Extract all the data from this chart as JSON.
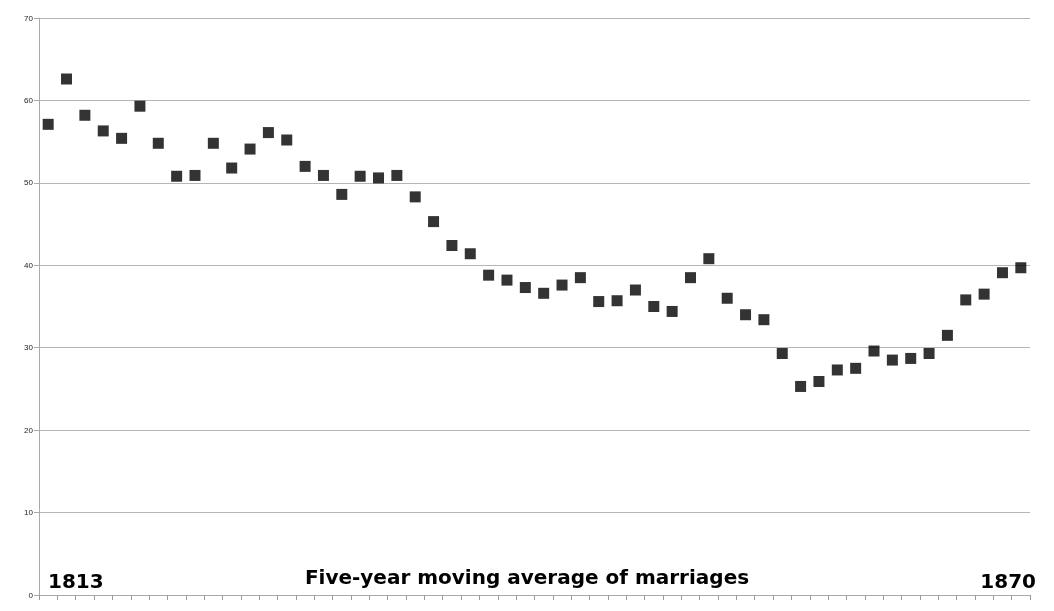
{
  "chart_data": {
    "type": "scatter",
    "xlabel": "Five-year moving average of marriages",
    "annotations": [
      "1813",
      "1870"
    ],
    "categories": [
      null,
      null,
      null,
      null,
      null,
      null,
      null,
      null,
      null,
      null,
      null,
      null,
      null,
      null,
      null,
      null,
      null,
      null,
      null,
      null,
      null,
      null,
      null,
      null,
      null,
      null,
      null,
      null,
      null,
      null,
      null,
      null,
      null,
      null,
      null,
      null,
      null,
      null,
      null,
      null,
      null,
      null,
      null,
      null,
      null,
      null,
      null,
      null,
      null,
      null,
      null,
      null,
      null,
      null
    ],
    "values": [
      57.1,
      62.6,
      58.2,
      56.3,
      55.4,
      59.3,
      54.8,
      50.8,
      50.9,
      54.8,
      51.8,
      54.1,
      56.1,
      55.2,
      52.0,
      50.9,
      48.6,
      50.8,
      50.6,
      50.9,
      48.3,
      45.3,
      42.4,
      41.4,
      38.8,
      38.2,
      37.3,
      36.6,
      37.6,
      38.5,
      35.6,
      35.7,
      37.0,
      35.0,
      34.4,
      38.5,
      40.8,
      36.0,
      34.0,
      33.4,
      29.3,
      25.3,
      25.9,
      27.3,
      27.5,
      29.6,
      28.5,
      28.7,
      29.3,
      31.5,
      35.8,
      36.5,
      39.1,
      39.7
    ],
    "color": "#000000",
    "marker": "square",
    "ylim": [
      0,
      70
    ],
    "yticks": [
      0,
      10,
      20,
      30,
      40,
      50,
      60,
      70
    ],
    "grid": "y"
  }
}
